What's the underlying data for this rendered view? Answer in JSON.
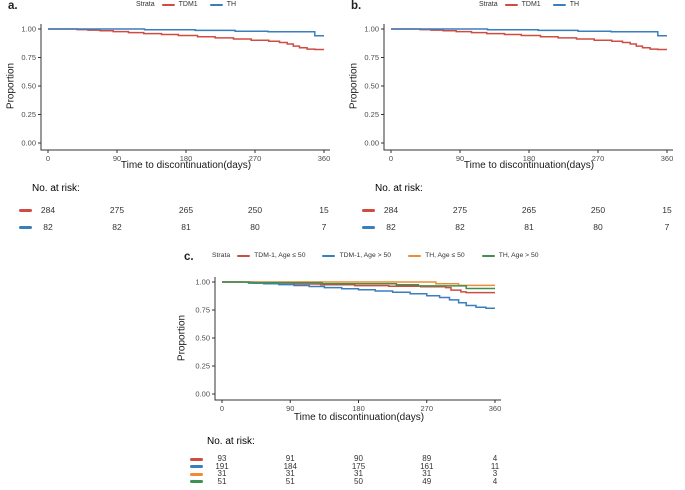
{
  "figure": {
    "background": "#ffffff"
  },
  "palette": {
    "red": "#cf4c43",
    "blue": "#3a7fbd",
    "orange": "#ef8c33",
    "green": "#3f9152"
  },
  "chart_data": [
    {
      "id": "a",
      "type": "line",
      "title": "a.",
      "xlabel": "Time to discontinuation(days)",
      "ylabel": "Proportion",
      "x_ticks": [
        0,
        90,
        180,
        270,
        360
      ],
      "y_ticks": [
        "1.00",
        "0.75",
        "0.50",
        "0.25",
        "0.00"
      ],
      "xlim": [
        0,
        360
      ],
      "ylim": [
        0,
        1
      ],
      "grid": false,
      "legend": {
        "label": "Strata",
        "position": "top",
        "items": [
          {
            "name": "TDM1",
            "color": "#cf4c43"
          },
          {
            "name": "TH",
            "color": "#3a7fbd"
          }
        ]
      },
      "series": [
        {
          "name": "TDM1",
          "color": "#cf4c43",
          "step_points": [
            [
              0,
              1.0
            ],
            [
              28,
              1.0
            ],
            [
              38,
              0.995
            ],
            [
              52,
              0.99
            ],
            [
              68,
              0.985
            ],
            [
              85,
              0.977
            ],
            [
              105,
              0.968
            ],
            [
              125,
              0.96
            ],
            [
              148,
              0.952
            ],
            [
              170,
              0.943
            ],
            [
              195,
              0.932
            ],
            [
              218,
              0.922
            ],
            [
              242,
              0.912
            ],
            [
              265,
              0.902
            ],
            [
              288,
              0.892
            ],
            [
              302,
              0.882
            ],
            [
              312,
              0.868
            ],
            [
              320,
              0.85
            ],
            [
              328,
              0.835
            ],
            [
              338,
              0.824
            ],
            [
              348,
              0.82
            ],
            [
              360,
              0.82
            ]
          ]
        },
        {
          "name": "TH",
          "color": "#3a7fbd",
          "step_points": [
            [
              0,
              1.0
            ],
            [
              122,
              1.0
            ],
            [
              126,
              0.994
            ],
            [
              188,
              0.994
            ],
            [
              192,
              0.988
            ],
            [
              240,
              0.988
            ],
            [
              244,
              0.981
            ],
            [
              283,
              0.981
            ],
            [
              287,
              0.976
            ],
            [
              344,
              0.976
            ],
            [
              348,
              0.94
            ],
            [
              360,
              0.94
            ]
          ]
        }
      ],
      "risk_table": {
        "header": "No. at risk:",
        "columns": [
          0,
          90,
          180,
          270,
          360
        ],
        "rows": [
          {
            "name": "TDM1",
            "color": "#cf4c43",
            "values": [
              "284",
              "275",
              "265",
              "250",
              "15"
            ]
          },
          {
            "name": "TH",
            "color": "#3a7fbd",
            "values": [
              "82",
              "82",
              "81",
              "80",
              "7"
            ]
          }
        ]
      }
    },
    {
      "id": "b",
      "type": "line",
      "title": "b.",
      "xlabel": "Time to discontinuation(days)",
      "ylabel": "Proportion",
      "x_ticks": [
        0,
        90,
        180,
        270,
        360
      ],
      "y_ticks": [
        "1.00",
        "0.75",
        "0.50",
        "0.25",
        "0.00"
      ],
      "xlim": [
        0,
        360
      ],
      "ylim": [
        0,
        1
      ],
      "grid": false,
      "legend": {
        "label": "Strata",
        "position": "top",
        "items": [
          {
            "name": "TDM1",
            "color": "#cf4c43"
          },
          {
            "name": "TH",
            "color": "#3a7fbd"
          }
        ]
      },
      "series": [
        {
          "name": "TDM1",
          "color": "#cf4c43",
          "step_points": [
            [
              0,
              1.0
            ],
            [
              28,
              1.0
            ],
            [
              38,
              0.995
            ],
            [
              52,
              0.99
            ],
            [
              68,
              0.985
            ],
            [
              85,
              0.977
            ],
            [
              105,
              0.968
            ],
            [
              125,
              0.96
            ],
            [
              148,
              0.952
            ],
            [
              170,
              0.943
            ],
            [
              195,
              0.932
            ],
            [
              218,
              0.922
            ],
            [
              242,
              0.912
            ],
            [
              265,
              0.902
            ],
            [
              288,
              0.892
            ],
            [
              302,
              0.882
            ],
            [
              312,
              0.868
            ],
            [
              320,
              0.85
            ],
            [
              328,
              0.835
            ],
            [
              338,
              0.824
            ],
            [
              348,
              0.82
            ],
            [
              360,
              0.82
            ]
          ]
        },
        {
          "name": "TH",
          "color": "#3a7fbd",
          "step_points": [
            [
              0,
              1.0
            ],
            [
              122,
              1.0
            ],
            [
              126,
              0.994
            ],
            [
              188,
              0.994
            ],
            [
              192,
              0.988
            ],
            [
              240,
              0.988
            ],
            [
              244,
              0.981
            ],
            [
              283,
              0.981
            ],
            [
              287,
              0.976
            ],
            [
              344,
              0.976
            ],
            [
              348,
              0.94
            ],
            [
              360,
              0.94
            ]
          ]
        }
      ],
      "risk_table": {
        "header": "No. at risk:",
        "columns": [
          0,
          90,
          180,
          270,
          360
        ],
        "rows": [
          {
            "name": "TDM1",
            "color": "#cf4c43",
            "values": [
              "284",
              "275",
              "265",
              "250",
              "15"
            ]
          },
          {
            "name": "TH",
            "color": "#3a7fbd",
            "values": [
              "82",
              "82",
              "81",
              "80",
              "7"
            ]
          }
        ]
      }
    },
    {
      "id": "c",
      "type": "line",
      "title": "c.",
      "xlabel": "Time to discontinuation(days)",
      "ylabel": "Proportion",
      "x_ticks": [
        0,
        90,
        180,
        270,
        360
      ],
      "y_ticks": [
        "1.00",
        "0.75",
        "0.50",
        "0.25",
        "0.00"
      ],
      "xlim": [
        0,
        360
      ],
      "ylim": [
        0,
        1
      ],
      "grid": false,
      "legend": {
        "label": "Strata",
        "position": "top",
        "items": [
          {
            "name": "TDM-1, Age ≤ 50",
            "color": "#cf4c43"
          },
          {
            "name": "TDM-1, Age > 50",
            "color": "#3a7fbd"
          },
          {
            "name": "TH, Age ≤ 50",
            "color": "#ef8c33"
          },
          {
            "name": "TH, Age > 50",
            "color": "#3f9152"
          }
        ]
      },
      "series": [
        {
          "name": "TDM-1, Age ≤ 50",
          "color": "#cf4c43",
          "step_points": [
            [
              0,
              1.0
            ],
            [
              30,
              1.0
            ],
            [
              42,
              0.99
            ],
            [
              85,
              0.99
            ],
            [
              95,
              0.982
            ],
            [
              130,
              0.975
            ],
            [
              175,
              0.968
            ],
            [
              220,
              0.962
            ],
            [
              262,
              0.957
            ],
            [
              295,
              0.95
            ],
            [
              302,
              0.928
            ],
            [
              315,
              0.912
            ],
            [
              322,
              0.905
            ],
            [
              360,
              0.905
            ]
          ]
        },
        {
          "name": "TDM-1, Age > 50",
          "color": "#3a7fbd",
          "step_points": [
            [
              0,
              1.0
            ],
            [
              18,
              0.997
            ],
            [
              35,
              0.99
            ],
            [
              55,
              0.984
            ],
            [
              75,
              0.977
            ],
            [
              95,
              0.969
            ],
            [
              115,
              0.96
            ],
            [
              135,
              0.95
            ],
            [
              158,
              0.94
            ],
            [
              180,
              0.93
            ],
            [
              202,
              0.92
            ],
            [
              225,
              0.908
            ],
            [
              248,
              0.895
            ],
            [
              270,
              0.878
            ],
            [
              287,
              0.862
            ],
            [
              300,
              0.84
            ],
            [
              312,
              0.815
            ],
            [
              322,
              0.79
            ],
            [
              335,
              0.775
            ],
            [
              348,
              0.765
            ],
            [
              360,
              0.765
            ]
          ]
        },
        {
          "name": "TH, Age ≤ 50",
          "color": "#ef8c33",
          "step_points": [
            [
              0,
              1.0
            ],
            [
              278,
              1.0
            ],
            [
              282,
              0.985
            ],
            [
              308,
              0.985
            ],
            [
              312,
              0.97
            ],
            [
              360,
              0.97
            ]
          ]
        },
        {
          "name": "TH, Age > 50",
          "color": "#3f9152",
          "step_points": [
            [
              0,
              1.0
            ],
            [
              32,
              1.0
            ],
            [
              36,
              0.995
            ],
            [
              128,
              0.995
            ],
            [
              132,
              0.985
            ],
            [
              226,
              0.985
            ],
            [
              230,
              0.975
            ],
            [
              255,
              0.975
            ],
            [
              259,
              0.965
            ],
            [
              318,
              0.965
            ],
            [
              322,
              0.942
            ],
            [
              360,
              0.942
            ]
          ]
        }
      ],
      "risk_table": {
        "header": "No. at risk:",
        "columns": [
          0,
          90,
          180,
          270,
          360
        ],
        "rows": [
          {
            "name": "TDM-1, Age ≤ 50",
            "color": "#cf4c43",
            "values": [
              "93",
              "91",
              "90",
              "89",
              "4"
            ]
          },
          {
            "name": "TDM-1, Age > 50",
            "color": "#3a7fbd",
            "values": [
              "191",
              "184",
              "175",
              "161",
              "11"
            ]
          },
          {
            "name": "TH, Age ≤ 50",
            "color": "#ef8c33",
            "values": [
              "31",
              "31",
              "31",
              "31",
              "3"
            ]
          },
          {
            "name": "TH, Age > 50",
            "color": "#3f9152",
            "values": [
              "51",
              "51",
              "50",
              "49",
              "4"
            ]
          }
        ]
      }
    }
  ]
}
